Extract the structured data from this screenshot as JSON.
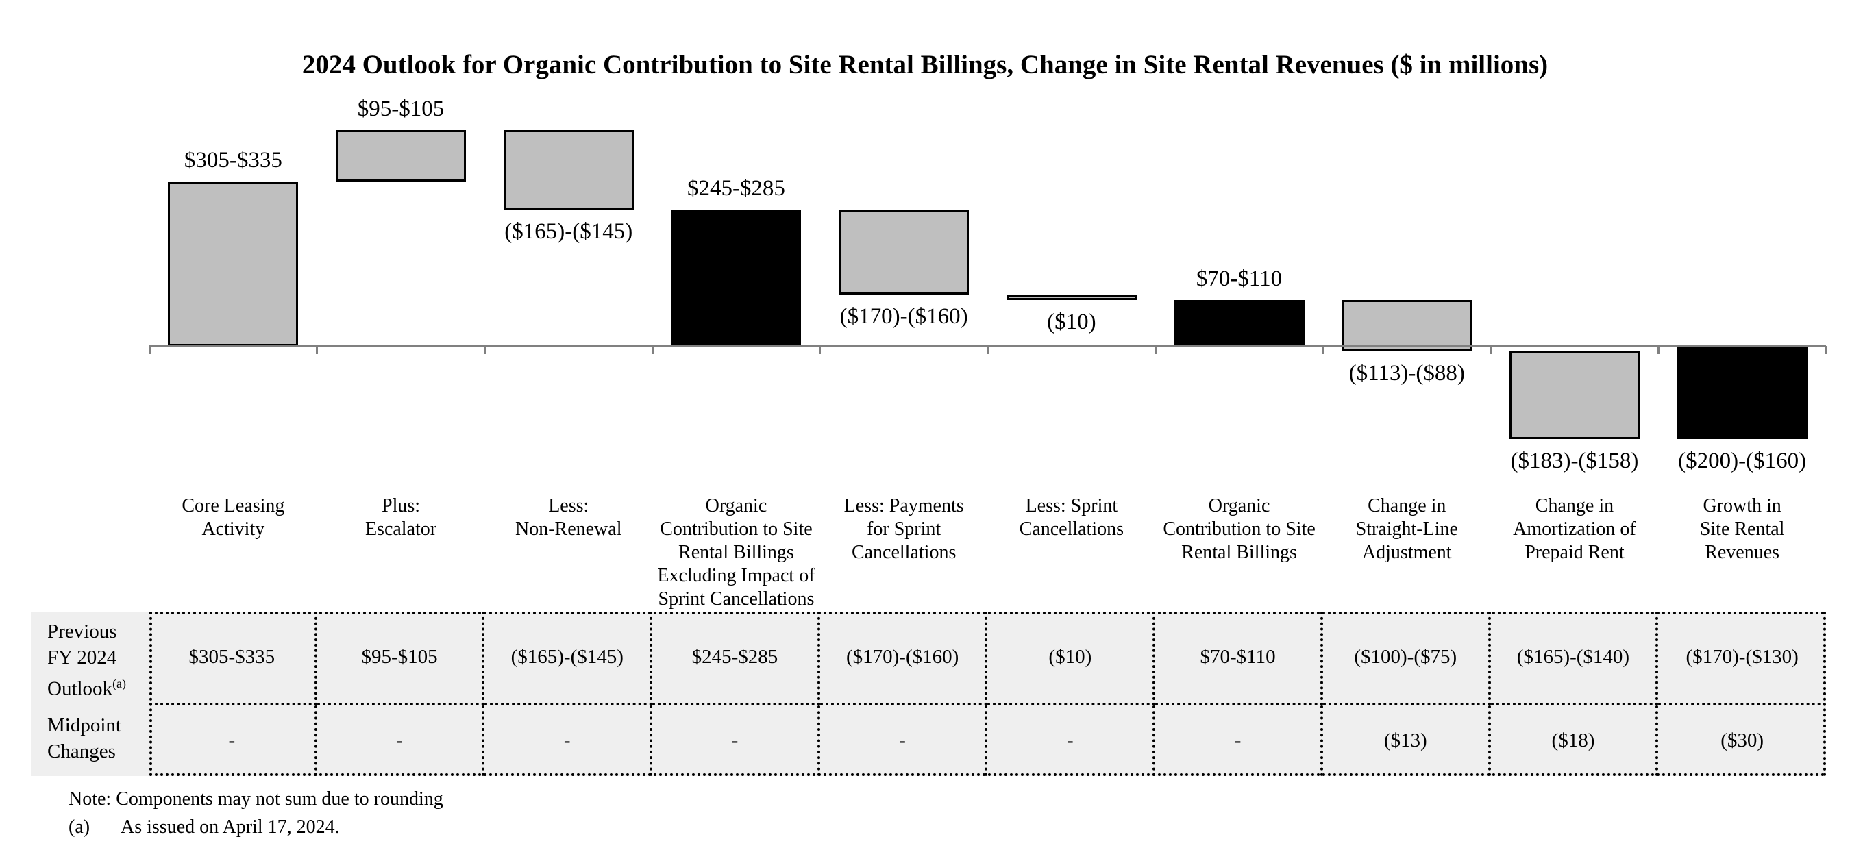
{
  "title": "2024 Outlook for Organic Contribution to Site Rental Billings, Change in Site Rental Revenues ($ in millions)",
  "colors": {
    "bar_gray": "#bfbfbf",
    "bar_black": "#000000",
    "bar_border": "#000000",
    "axis": "#808080",
    "table_background": "#efefef",
    "table_border": "#000000"
  },
  "chart_data": {
    "type": "waterfall",
    "title": "2024 Outlook for Organic Contribution to Site Rental Billings, Change in Site Rental Revenues ($ in millions)",
    "unit": "$ in millions",
    "baseline_value": 0,
    "gridlines": false,
    "legend": "none",
    "bars": [
      {
        "category": "Core Leasing\nActivity",
        "label": "$305-$335",
        "low": 305,
        "high": 335,
        "kind": "increase",
        "color": "#bfbfbf",
        "label_position": "above"
      },
      {
        "category": "Plus:\nEscalator",
        "label": "$95-$105",
        "low": 95,
        "high": 105,
        "kind": "increase",
        "color": "#bfbfbf",
        "label_position": "above"
      },
      {
        "category": "Less:\nNon-Renewal",
        "label": "($165)-($145)",
        "low": -165,
        "high": -145,
        "kind": "decrease",
        "color": "#bfbfbf",
        "label_position": "below"
      },
      {
        "category": "Organic\nContribution to Site\nRental Billings\nExcluding Impact of\nSprint Cancellations",
        "label": "$245-$285",
        "low": 245,
        "high": 285,
        "kind": "subtotal",
        "color": "#000000",
        "label_position": "above"
      },
      {
        "category": "Less: Payments\nfor Sprint\nCancellations",
        "label": "($170)-($160)",
        "low": -170,
        "high": -160,
        "kind": "decrease",
        "color": "#bfbfbf",
        "label_position": "below"
      },
      {
        "category": "Less: Sprint\nCancellations",
        "label": "($10)",
        "low": -10,
        "high": -10,
        "kind": "decrease",
        "color": "#bfbfbf",
        "label_position": "below"
      },
      {
        "category": "Organic\nContribution to Site\nRental Billings",
        "label": "$70-$110",
        "low": 70,
        "high": 110,
        "kind": "subtotal",
        "color": "#000000",
        "label_position": "above"
      },
      {
        "category": "Change in\nStraight-Line\nAdjustment",
        "label": "($113)-($88)",
        "low": -113,
        "high": -88,
        "kind": "decrease",
        "color": "#bfbfbf",
        "label_position": "below"
      },
      {
        "category": "Change in\nAmortization of\nPrepaid Rent",
        "label": "($183)-($158)",
        "low": -183,
        "high": -158,
        "kind": "decrease",
        "color": "#bfbfbf",
        "label_position": "below"
      },
      {
        "category": "Growth in\nSite Rental\nRevenues",
        "label": "($200)-($160)",
        "low": -200,
        "high": -160,
        "kind": "total",
        "color": "#000000",
        "label_position": "below"
      }
    ]
  },
  "table": {
    "row_headers": [
      {
        "lines": "Previous\nFY 2024\nOutlook",
        "superscript": "(a)"
      },
      {
        "lines": "Midpoint\nChanges",
        "superscript": ""
      }
    ],
    "rows": [
      [
        "$305-$335",
        "$95-$105",
        "($165)-($145)",
        "$245-$285",
        "($170)-($160)",
        "($10)",
        "$70-$110",
        "($100)-($75)",
        "($165)-($140)",
        "($170)-($130)"
      ],
      [
        "-",
        "-",
        "-",
        "-",
        "-",
        "-",
        "-",
        "($13)",
        "($18)",
        "($30)"
      ]
    ]
  },
  "notes": {
    "note": "Note: Components may not sum due to rounding",
    "footnote_marker": "(a)",
    "footnote_text": "As issued on April 17, 2024."
  }
}
